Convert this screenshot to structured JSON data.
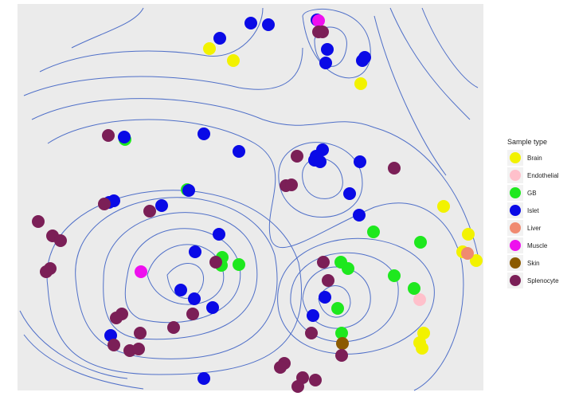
{
  "chart_data": {
    "type": "scatter",
    "xlim": [
      0,
      585
    ],
    "ylim": [
      0,
      485
    ],
    "legend_title": "Sample type",
    "legend": "right",
    "series": [
      {
        "name": "Brain",
        "color": "#f2f200",
        "x": [
          241,
          271,
          431,
          535,
          566,
          559,
          576,
          510,
          505,
          508
        ],
        "values": [
          429,
          414,
          385,
          231,
          196,
          174,
          163,
          72,
          60,
          53
        ]
      },
      {
        "name": "Endothelial",
        "color": "#ffc0cb",
        "x": [
          505
        ],
        "values": [
          114
        ]
      },
      {
        "name": "GB",
        "color": "#1ee81e",
        "x": [
          135,
          213,
          257,
          256,
          278,
          447,
          506,
          406,
          415,
          473,
          498,
          402,
          407
        ],
        "values": [
          315,
          252,
          167,
          157,
          158,
          199,
          186,
          161,
          153,
          144,
          128,
          103,
          72
        ]
      },
      {
        "name": "Islet",
        "color": "#0a0ae6",
        "x": [
          254,
          293,
          315,
          376,
          389,
          387,
          433,
          436,
          134,
          234,
          278,
          383,
          375,
          373,
          380,
          430,
          417,
          429,
          121,
          115,
          181,
          215,
          253,
          223,
          205,
          222,
          245,
          371,
          386,
          117,
          234
        ],
        "values": [
          442,
          461,
          459,
          465,
          428,
          411,
          414,
          418,
          318,
          322,
          300,
          302,
          294,
          289,
          287,
          287,
          247,
          220,
          238,
          236,
          232,
          251,
          196,
          174,
          126,
          115,
          104,
          94,
          117,
          69,
          15
        ]
      },
      {
        "name": "Liver",
        "color": "#f08a70",
        "x": [
          565
        ],
        "values": [
          172
        ]
      },
      {
        "name": "Muscle",
        "color": "#ee10ee",
        "x": [
          378,
          155
        ],
        "values": [
          464,
          149
        ]
      },
      {
        "name": "Skin",
        "color": "#8b5a00",
        "x": [
          408
        ],
        "values": [
          59
        ]
      },
      {
        "name": "Splenocyte",
        "color": "#7b1f57",
        "x": [
          383,
          378,
          114,
          351,
          473,
          337,
          344,
          109,
          166,
          26,
          44,
          54,
          41,
          36,
          249,
          384,
          390,
          131,
          124,
          154,
          196,
          220,
          121,
          141,
          152,
          369,
          407,
          335,
          330,
          358,
          374,
          352
        ],
        "values": [
          450,
          450,
          320,
          294,
          279,
          257,
          258,
          234,
          225,
          212,
          194,
          188,
          153,
          149,
          161,
          161,
          138,
          96,
          91,
          72,
          79,
          96,
          57,
          50,
          52,
          72,
          44,
          34,
          29,
          16,
          13,
          5
        ]
      }
    ]
  }
}
